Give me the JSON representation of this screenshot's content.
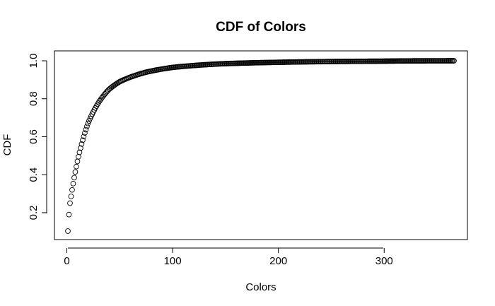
{
  "chart_data": {
    "type": "scatter",
    "title": "CDF of Colors",
    "xlabel": "Colors",
    "ylabel": "CDF",
    "xlim": [
      1,
      366
    ],
    "ylim": [
      0.103,
      1.0
    ],
    "x_ticks": [
      0,
      100,
      200,
      300
    ],
    "y_ticks": [
      0.2,
      0.4,
      0.6,
      0.8,
      1.0
    ],
    "x_tick_labels": [
      "0",
      "100",
      "200",
      "300"
    ],
    "y_tick_labels": [
      "0.2",
      "0.4",
      "0.6",
      "0.8",
      "1.0"
    ],
    "grid": false,
    "marker": "open-circle",
    "series": [
      {
        "x_range": [
          1,
          366
        ],
        "x_step": 1,
        "approx_points": [
          {
            "x": 1,
            "y": 0.103
          },
          {
            "x": 2,
            "y": 0.19
          },
          {
            "x": 3,
            "y": 0.25
          },
          {
            "x": 5,
            "y": 0.32
          },
          {
            "x": 10,
            "y": 0.47
          },
          {
            "x": 20,
            "y": 0.67
          },
          {
            "x": 30,
            "y": 0.78
          },
          {
            "x": 40,
            "y": 0.85
          },
          {
            "x": 50,
            "y": 0.89
          },
          {
            "x": 75,
            "y": 0.94
          },
          {
            "x": 100,
            "y": 0.965
          },
          {
            "x": 150,
            "y": 0.985
          },
          {
            "x": 200,
            "y": 0.992
          },
          {
            "x": 300,
            "y": 0.998
          },
          {
            "x": 366,
            "y": 1.0
          }
        ]
      }
    ]
  }
}
